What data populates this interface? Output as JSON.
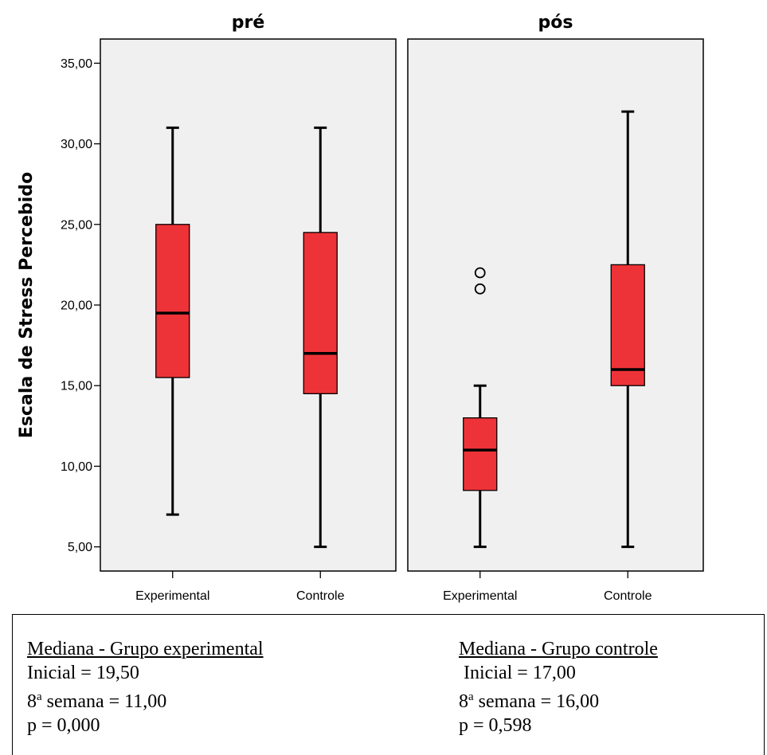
{
  "chart_data": {
    "type": "boxplot",
    "ylabel": "Escala de Stress Percebido",
    "ylim": [
      3.5,
      36.5
    ],
    "yticks": [
      "5,00",
      "10,00",
      "15,00",
      "20,00",
      "25,00",
      "30,00",
      "35,00"
    ],
    "ytick_values": [
      5,
      10,
      15,
      20,
      25,
      30,
      35
    ],
    "panels": [
      {
        "title": "pré",
        "groups": [
          {
            "label": "Experimental",
            "whisker_low": 7,
            "q1": 15.5,
            "median": 19.5,
            "q3": 25,
            "whisker_high": 31,
            "outliers": []
          },
          {
            "label": "Controle",
            "whisker_low": 5,
            "q1": 14.5,
            "median": 17,
            "q3": 24.5,
            "whisker_high": 31,
            "outliers": []
          }
        ]
      },
      {
        "title": "pós",
        "groups": [
          {
            "label": "Experimental",
            "whisker_low": 5,
            "q1": 8.5,
            "median": 11,
            "q3": 13,
            "whisker_high": 15,
            "outliers": [
              21,
              22
            ]
          },
          {
            "label": "Controle",
            "whisker_low": 5,
            "q1": 15,
            "median": 16,
            "q3": 22.5,
            "whisker_high": 32,
            "outliers": []
          }
        ]
      }
    ],
    "box_color": "#ee3338",
    "panel_bg": "#f0f0f0"
  },
  "stats": {
    "experimental": {
      "heading": "Mediana - Grupo experimental",
      "initial": "Inicial = 19,50",
      "week_prefix": "8",
      "week_sup": "a",
      "week_rest": " semana = 11,00",
      "p": "p = 0,000"
    },
    "control": {
      "heading": "Mediana - Grupo controle",
      "initial": "Inicial = 17,00",
      "week_prefix": "8",
      "week_sup": "a",
      "week_rest": " semana = 16,00",
      "p": "p = 0,598"
    }
  }
}
